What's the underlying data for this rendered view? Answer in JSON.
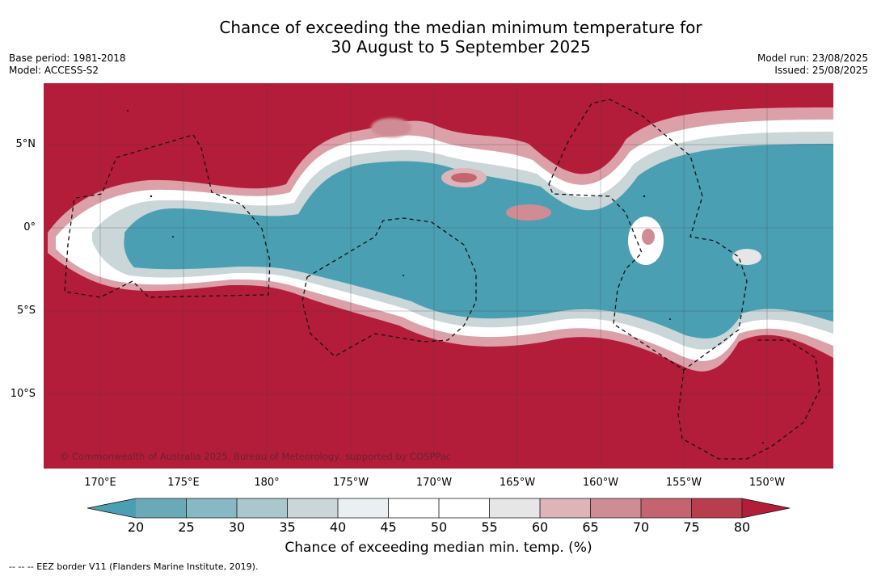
{
  "title_line1": "Chance of exceeding the median minimum temperature for",
  "title_line2": "30 August to 5 September 2025",
  "base_period": "Base period: 1981-2018",
  "model": "Model: ACCESS-S2",
  "model_run": "Model run: 23/08/2025",
  "issued": "Issued: 25/08/2025",
  "lat_labels": [
    "5°N",
    "0°",
    "5°S",
    "10°S"
  ],
  "lon_labels": [
    "170°E",
    "175°E",
    "180°",
    "175°W",
    "170°W",
    "165°W",
    "160°W",
    "155°W",
    "150°W"
  ],
  "credit": "© Commonwealth of Australia 2025, Bureau of Meteorology, supported by COSPPac",
  "colorbar": {
    "ticks": [
      "20",
      "25",
      "30",
      "35",
      "40",
      "45",
      "50",
      "55",
      "60",
      "65",
      "70",
      "75",
      "80"
    ],
    "label": "Chance of exceeding median min. temp. (%)",
    "colors": {
      "below_20": "#4aa0b2",
      "20_25": "#6aaab8",
      "25_30": "#88b8c3",
      "30_35": "#a9c7cc",
      "35_40": "#cad6d8",
      "40_45": "#eaf0f2",
      "45_50": "#ffffff",
      "50_55": "#ffffff",
      "55_60": "#e6e6e6",
      "60_65": "#dcb4ba",
      "65_70": "#d08c94",
      "70_75": "#c46470",
      "75_80": "#b83e4e",
      "above_80": "#b41d39"
    }
  },
  "footer": "--  --  -- EEZ border V11 (Flanders Marine Institute, 2019)."
}
